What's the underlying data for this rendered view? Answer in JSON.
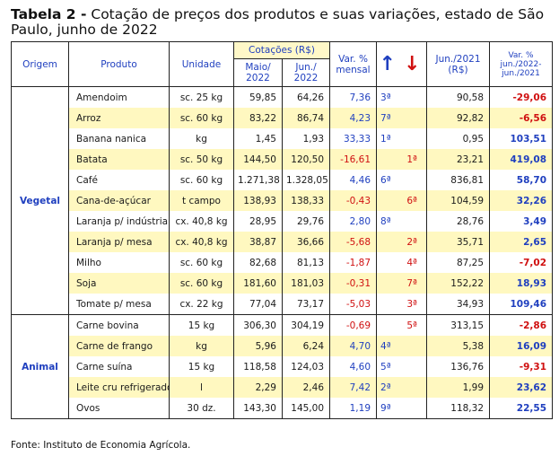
{
  "title": {
    "prefix": "Tabela 2 -",
    "text": "Cotação de preços dos produtos e suas variações, estado de São Paulo, junho de 2022"
  },
  "headers": {
    "origem": "Origem",
    "produto": "Produto",
    "unidade": "Unidade",
    "cotacoes": "Cotações (R$)",
    "maio": "Maio/ 2022",
    "jun": "Jun./ 2022",
    "var_mensal": "Var. % mensal",
    "arrow_up": "↑",
    "arrow_down": "↓",
    "jun2021": "Jun./2021 (R$)",
    "var_anual": "Var. % jun./2022- jun./2021"
  },
  "groups": [
    {
      "origem": "Vegetal",
      "rows": [
        {
          "produto": "Amendoim",
          "unidade": "sc. 25 kg",
          "maio": "59,85",
          "jun": "64,26",
          "var": "7,36",
          "rank_up": "3ª",
          "rank_down": "",
          "jun2021": "90,58",
          "var_anual": "-29,06"
        },
        {
          "produto": "Arroz",
          "unidade": "sc. 60 kg",
          "maio": "83,22",
          "jun": "86,74",
          "var": "4,23",
          "rank_up": "7ª",
          "rank_down": "",
          "jun2021": "92,82",
          "var_anual": "-6,56"
        },
        {
          "produto": "Banana nanica",
          "unidade": "kg",
          "maio": "1,45",
          "jun": "1,93",
          "var": "33,33",
          "rank_up": "1ª",
          "rank_down": "",
          "jun2021": "0,95",
          "var_anual": "103,51"
        },
        {
          "produto": "Batata",
          "unidade": "sc. 50 kg",
          "maio": "144,50",
          "jun": "120,50",
          "var": "-16,61",
          "rank_up": "",
          "rank_down": "1ª",
          "jun2021": "23,21",
          "var_anual": "419,08"
        },
        {
          "produto": "Café",
          "unidade": "sc. 60 kg",
          "maio": "1.271,38",
          "jun": "1.328,05",
          "var": "4,46",
          "rank_up": "6ª",
          "rank_down": "",
          "jun2021": "836,81",
          "var_anual": "58,70"
        },
        {
          "produto": "Cana-de-açúcar",
          "unidade": "t campo",
          "maio": "138,93",
          "jun": "138,33",
          "var": "-0,43",
          "rank_up": "",
          "rank_down": "6ª",
          "jun2021": "104,59",
          "var_anual": "32,26"
        },
        {
          "produto": "Laranja p/ indústria",
          "unidade": "cx. 40,8 kg",
          "maio": "28,95",
          "jun": "29,76",
          "var": "2,80",
          "rank_up": "8ª",
          "rank_down": "",
          "jun2021": "28,76",
          "var_anual": "3,49"
        },
        {
          "produto": "Laranja p/ mesa",
          "unidade": "cx. 40,8 kg",
          "maio": "38,87",
          "jun": "36,66",
          "var": "-5,68",
          "rank_up": "",
          "rank_down": "2ª",
          "jun2021": "35,71",
          "var_anual": "2,65"
        },
        {
          "produto": "Milho",
          "unidade": "sc. 60 kg",
          "maio": "82,68",
          "jun": "81,13",
          "var": "-1,87",
          "rank_up": "",
          "rank_down": "4ª",
          "jun2021": "87,25",
          "var_anual": "-7,02"
        },
        {
          "produto": "Soja",
          "unidade": "sc. 60 kg",
          "maio": "181,60",
          "jun": "181,03",
          "var": "-0,31",
          "rank_up": "",
          "rank_down": "7ª",
          "jun2021": "152,22",
          "var_anual": "18,93"
        },
        {
          "produto": "Tomate p/ mesa",
          "unidade": "cx. 22 kg",
          "maio": "77,04",
          "jun": "73,17",
          "var": "-5,03",
          "rank_up": "",
          "rank_down": "3ª",
          "jun2021": "34,93",
          "var_anual": "109,46"
        }
      ]
    },
    {
      "origem": "Animal",
      "rows": [
        {
          "produto": "Carne bovina",
          "unidade": "15 kg",
          "maio": "306,30",
          "jun": "304,19",
          "var": "-0,69",
          "rank_up": "",
          "rank_down": "5ª",
          "jun2021": "313,15",
          "var_anual": "-2,86"
        },
        {
          "produto": "Carne de frango",
          "unidade": "kg",
          "maio": "5,96",
          "jun": "6,24",
          "var": "4,70",
          "rank_up": "4ª",
          "rank_down": "",
          "jun2021": "5,38",
          "var_anual": "16,09"
        },
        {
          "produto": "Carne suína",
          "unidade": "15 kg",
          "maio": "118,58",
          "jun": "124,03",
          "var": "4,60",
          "rank_up": "5ª",
          "rank_down": "",
          "jun2021": "136,76",
          "var_anual": "-9,31"
        },
        {
          "produto": "Leite cru refrigerado",
          "unidade": "l",
          "maio": "2,29",
          "jun": "2,46",
          "var": "7,42",
          "rank_up": "2ª",
          "rank_down": "",
          "jun2021": "1,99",
          "var_anual": "23,62"
        },
        {
          "produto": "Ovos",
          "unidade": "30 dz.",
          "maio": "143,30",
          "jun": "145,00",
          "var": "1,19",
          "rank_up": "9ª",
          "rank_down": "",
          "jun2021": "118,32",
          "var_anual": "22,55"
        }
      ]
    }
  ],
  "source": "Fonte: Instituto de Economia Agrícola.",
  "colors": {
    "blue": "#1f3fbf",
    "red": "#d01010",
    "highlight": "#fff8c0"
  }
}
